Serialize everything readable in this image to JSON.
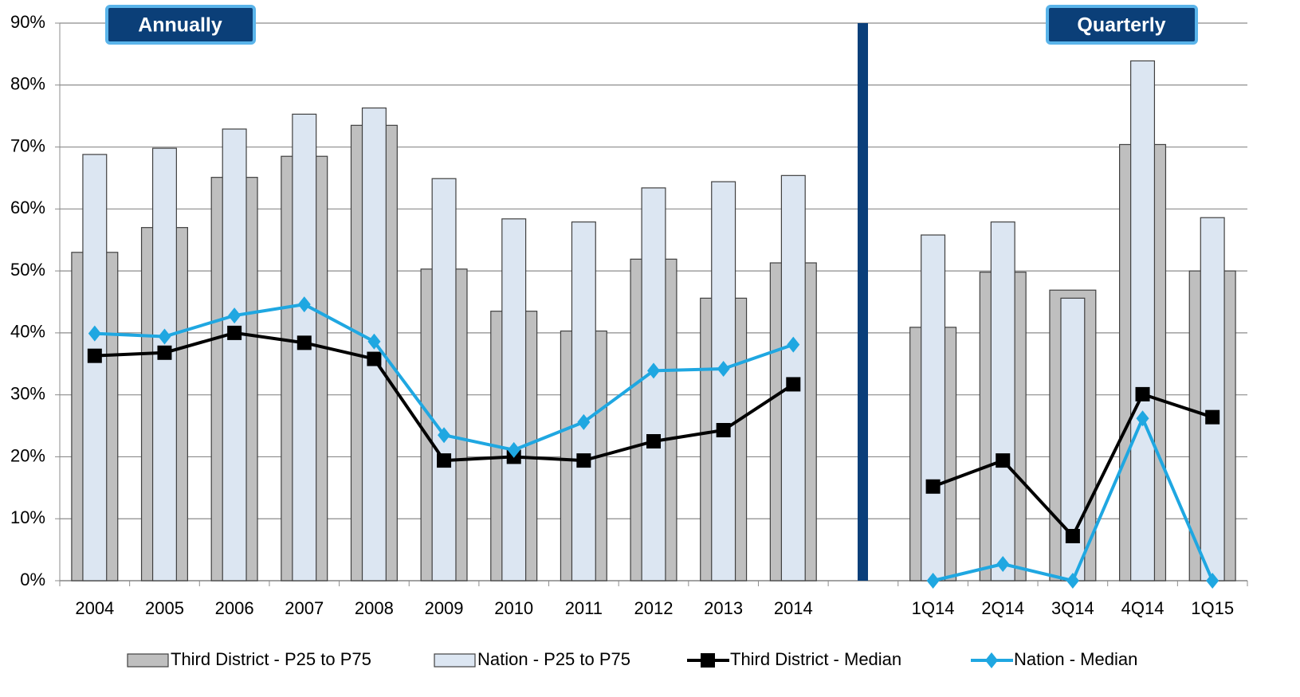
{
  "chart_data": {
    "type": "bar",
    "categories": [
      "2004",
      "2005",
      "2006",
      "2007",
      "2008",
      "2009",
      "2010",
      "2011",
      "2012",
      "2013",
      "2014",
      null,
      "1Q14",
      "2Q14",
      "3Q14",
      "4Q14",
      "1Q15"
    ],
    "series": [
      {
        "name": "Third District - P25 to P75",
        "type": "bar",
        "color": "#bfbfbf",
        "values": [
          53,
          57,
          65.1,
          68.5,
          73.5,
          50.3,
          43.5,
          40.3,
          51.9,
          45.6,
          51.3,
          null,
          40.9,
          49.8,
          46.9,
          70.4,
          50
        ]
      },
      {
        "name": "Nation - P25 to P75",
        "type": "bar",
        "color": "#dce6f2",
        "values": [
          68.8,
          69.8,
          72.9,
          75.3,
          76.3,
          64.9,
          58.4,
          57.9,
          63.4,
          64.4,
          65.4,
          null,
          55.8,
          57.9,
          45.6,
          83.9,
          58.6
        ]
      },
      {
        "name": "Third District - Median",
        "type": "line",
        "marker": "square",
        "color": "#000000",
        "values": [
          36.3,
          36.8,
          40,
          38.4,
          35.8,
          19.4,
          20,
          19.4,
          22.5,
          24.3,
          31.7,
          null,
          15.2,
          19.4,
          7.2,
          30.1,
          26.4
        ]
      },
      {
        "name": "Nation - Median",
        "type": "line",
        "marker": "diamond",
        "color": "#1fa7e1",
        "values": [
          39.9,
          39.4,
          42.8,
          44.6,
          38.6,
          23.5,
          21.1,
          25.6,
          33.9,
          34.2,
          38.1,
          null,
          0,
          2.7,
          0,
          26.2,
          0
        ]
      }
    ],
    "annotations": [
      "Annually",
      "Quarterly"
    ],
    "ylim": [
      0,
      90
    ],
    "yticks": [
      {
        "value": 0,
        "label": "0%"
      },
      {
        "value": 10,
        "label": "10%"
      },
      {
        "value": 20,
        "label": "20%"
      },
      {
        "value": 30,
        "label": "30%"
      },
      {
        "value": 40,
        "label": "40%"
      },
      {
        "value": 50,
        "label": "50%"
      },
      {
        "value": 60,
        "label": "60%"
      },
      {
        "value": 70,
        "label": "70%"
      },
      {
        "value": 80,
        "label": "80%"
      },
      {
        "value": 90,
        "label": "90%"
      }
    ],
    "grid": true,
    "legend": "bottom"
  }
}
